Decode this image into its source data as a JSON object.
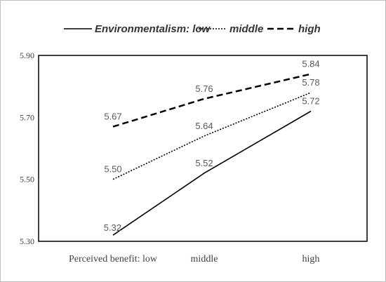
{
  "chart_data": {
    "type": "line",
    "title": "",
    "xlabel": "",
    "ylabel": "",
    "categories": [
      "Perceived benefit: low",
      "middle",
      "high"
    ],
    "y_ticks": [
      "5.30",
      "5.50",
      "5.70",
      "5.90"
    ],
    "ylim": [
      5.3,
      5.9
    ],
    "grid": false,
    "legend_position": "top",
    "series": [
      {
        "name": "Environmentalism: low",
        "values": [
          5.32,
          5.52,
          5.72
        ],
        "labels": [
          "5.32",
          "5.52",
          "5.72"
        ],
        "style": "solid",
        "color": "#000000"
      },
      {
        "name": "middle",
        "values": [
          5.5,
          5.64,
          5.78
        ],
        "labels": [
          "5.50",
          "5.64",
          "5.78"
        ],
        "style": "dotted",
        "color": "#000000"
      },
      {
        "name": "high",
        "values": [
          5.67,
          5.76,
          5.84
        ],
        "labels": [
          "5.67",
          "5.76",
          "5.84"
        ],
        "style": "dashed",
        "color": "#000000"
      }
    ]
  }
}
